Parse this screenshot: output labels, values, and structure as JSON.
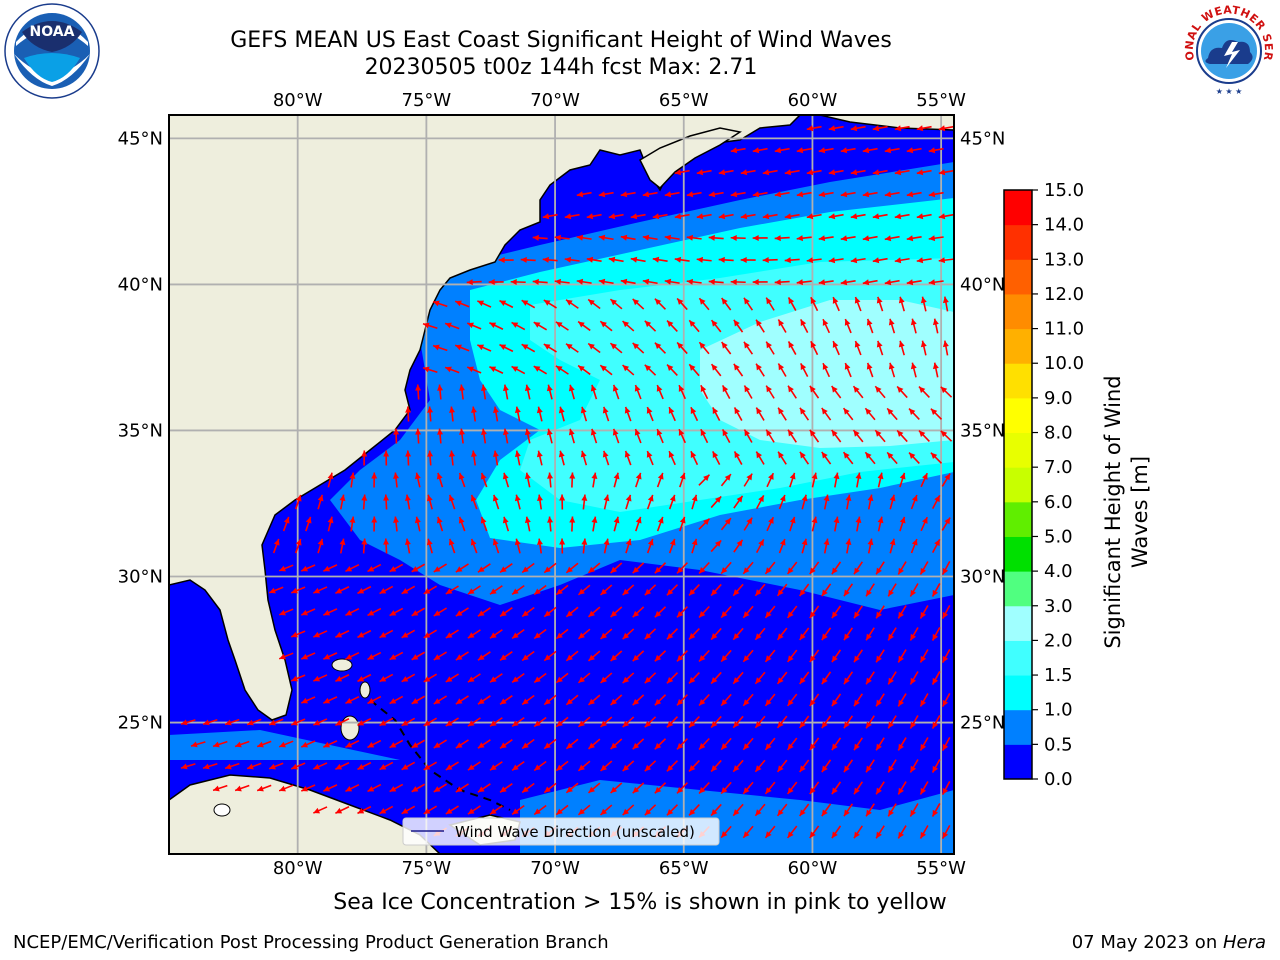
{
  "title": {
    "line1": "GEFS MEAN US East Coast Significant Height of Wind Waves",
    "line2": "20230505 t00z 144h fcst   Max: 2.71"
  },
  "axes": {
    "lon_labels": [
      "80°W",
      "75°W",
      "70°W",
      "65°W",
      "60°W",
      "55°W"
    ],
    "lat_labels": [
      "45°N",
      "40°N",
      "35°N",
      "30°N",
      "25°N"
    ],
    "lon_range": [
      -85,
      -54.5
    ],
    "lat_range": [
      20.5,
      45.8
    ]
  },
  "legend": {
    "label": "Wind Wave Direction (unscaled)",
    "position": "bottom-center"
  },
  "colorbar": {
    "label": "Significant Height of Wind Waves [m]",
    "ticks": [
      "0.0",
      "0.5",
      "1.0",
      "1.5",
      "2.0",
      "3.0",
      "4.0",
      "5.0",
      "6.0",
      "7.0",
      "8.0",
      "9.0",
      "10.0",
      "11.0",
      "12.0",
      "13.0",
      "14.0",
      "15.0"
    ],
    "colors": [
      "#0000ff",
      "#0080ff",
      "#00ffff",
      "#40ffff",
      "#a0ffff",
      "#50ff80",
      "#00e000",
      "#60ee00",
      "#c8ff00",
      "#e8ff00",
      "#ffff00",
      "#ffe000",
      "#ffb000",
      "#ff8c00",
      "#ff6000",
      "#ff3000",
      "#ff0000"
    ]
  },
  "map_colors": {
    "land": "#eeeedd",
    "ocean_low": "#0000ff",
    "ocean_mid": "#0080ff",
    "ocean_high": "#00ffff",
    "ocean_peak": "#40ffff",
    "ocean_max": "#a0ffff",
    "arrow": "#ff0000",
    "grid": "#b0b0b0"
  },
  "footnote": "Sea Ice Concentration > 15% is shown in pink to yellow",
  "credit_left": "NCEP/EMC/Verification Post Processing Product Generation Branch",
  "credit_right_prefix": "07 May 2023 on ",
  "credit_right_host": "Hera",
  "logos": {
    "left": "noaa-logo",
    "left_text": "NOAA",
    "right": "nws-logo",
    "right_text": "NATIONAL WEATHER SERVICE"
  }
}
